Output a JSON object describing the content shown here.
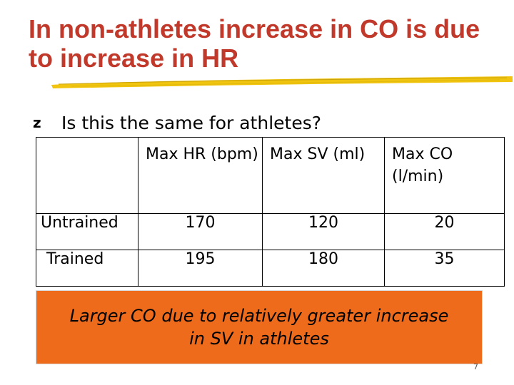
{
  "slide": {
    "title": "In non-athletes increase in CO is due to increase in HR",
    "bullet": "Is this the same for athletes?",
    "bullet_icon": "z-bullet-icon",
    "accent_color": "#c0392b",
    "box_color": "#ef6b1c",
    "page_number": "7"
  },
  "table": {
    "headers": [
      "",
      "Max HR (bpm)",
      "Max SV (ml)",
      "Max CO (l/min)"
    ],
    "rows": [
      {
        "label": "Untrained",
        "hr": "170",
        "sv": "120",
        "co": "20"
      },
      {
        "label": "Trained",
        "hr": "195",
        "sv": "180",
        "co": "35"
      }
    ]
  },
  "conclusion": {
    "line1": "Larger CO due to relatively greater increase",
    "line2": "in SV in athletes"
  }
}
